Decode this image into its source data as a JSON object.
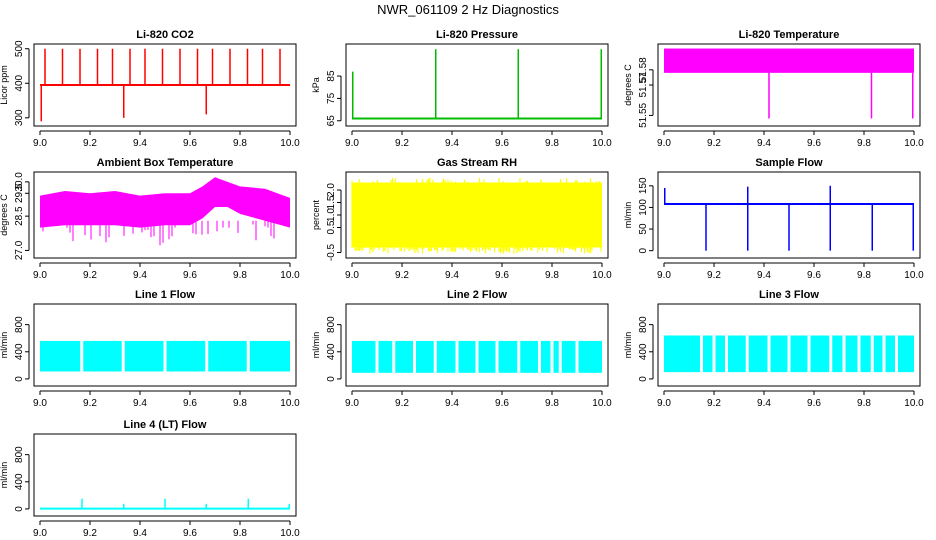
{
  "page_title": "NWR_061109  2 Hz Diagnostics",
  "chart_data": [
    {
      "type": "line",
      "title": "Li-820 CO2",
      "ylabel": "Licor ppm",
      "color": "#ff0000",
      "xlim": [
        9.0,
        10.0
      ],
      "ylim": [
        285,
        505
      ],
      "xticks": [
        9.0,
        9.2,
        9.4,
        9.6,
        9.8,
        10.0
      ],
      "xtick_labels": [
        "9.0",
        "9.2",
        "9.4",
        "9.6",
        "9.8",
        "10.0"
      ],
      "yticks": [
        300,
        400,
        500
      ],
      "ytick_labels": [
        "300",
        "400",
        "500"
      ],
      "baseline": [
        9.0,
        10.0,
        395,
        395
      ],
      "spikes": [
        [
          9.02,
          500
        ],
        [
          9.09,
          500
        ],
        [
          9.16,
          500
        ],
        [
          9.23,
          500
        ],
        [
          9.29,
          500
        ],
        [
          9.36,
          500
        ],
        [
          9.42,
          500
        ],
        [
          9.49,
          500
        ],
        [
          9.56,
          500
        ],
        [
          9.63,
          500
        ],
        [
          9.69,
          500
        ],
        [
          9.76,
          500
        ],
        [
          9.83,
          500
        ],
        [
          9.89,
          500
        ],
        [
          9.96,
          500
        ],
        [
          9.005,
          290
        ],
        [
          9.335,
          300
        ],
        [
          9.665,
          310
        ]
      ],
      "band": null
    },
    {
      "type": "line",
      "title": "Li-820 Pressure",
      "ylabel": "kPa",
      "color": "#00bb00",
      "xlim": [
        9.0,
        10.0
      ],
      "ylim": [
        64,
        98
      ],
      "xticks": [
        9.0,
        9.2,
        9.4,
        9.6,
        9.8,
        10.0
      ],
      "xtick_labels": [
        "9.0",
        "9.2",
        "9.4",
        "9.6",
        "9.8",
        "10.0"
      ],
      "yticks": [
        65,
        75,
        85
      ],
      "ytick_labels": [
        "65",
        "75",
        "85"
      ],
      "baseline": [
        9.0,
        10.0,
        66,
        66
      ],
      "spikes": [
        [
          9.003,
          87
        ],
        [
          9.335,
          97
        ],
        [
          9.665,
          97
        ],
        [
          9.997,
          97
        ]
      ],
      "band": null
    },
    {
      "type": "area",
      "title": "Li-820 Temperature",
      "ylabel": "degrees C",
      "color": "#ff00ff",
      "xlim": [
        9.0,
        10.0
      ],
      "ylim": [
        51.545,
        51.595
      ],
      "xticks": [
        9.0,
        9.2,
        9.4,
        9.6,
        9.8,
        10.0
      ],
      "xtick_labels": [
        "9.0",
        "9.2",
        "9.4",
        "9.6",
        "9.8",
        "10.0"
      ],
      "yticks": [
        51.55,
        51.57,
        51.58
      ],
      "ytick_labels": [
        "51.55",
        "51.57",
        "51.58"
      ],
      "baseline": null,
      "spikes": [
        [
          9.42,
          51.548
        ],
        [
          9.83,
          51.548
        ],
        [
          9.995,
          51.548
        ]
      ],
      "band": [
        51.578,
        51.594
      ]
    },
    {
      "type": "area",
      "title": "Ambient Box Temperature",
      "ylabel": "degrees C",
      "color": "#ff00ff",
      "xlim": [
        9.0,
        10.0
      ],
      "ylim": [
        26.8,
        30.3
      ],
      "xticks": [
        9.0,
        9.2,
        9.4,
        9.6,
        9.8,
        10.0
      ],
      "xtick_labels": [
        "9.0",
        "9.2",
        "9.4",
        "9.6",
        "9.8",
        "10.0"
      ],
      "yticks": [
        27.0,
        28.5,
        29.5,
        30.0
      ],
      "ytick_labels": [
        "27.0",
        "28.5",
        "29.5",
        "30.0"
      ],
      "baseline": null,
      "spikes": [],
      "band_series": {
        "x": [
          9.0,
          9.1,
          9.2,
          9.3,
          9.4,
          9.5,
          9.6,
          9.65,
          9.7,
          9.75,
          9.8,
          9.9,
          10.0
        ],
        "low": [
          28.0,
          28.1,
          28.1,
          28.1,
          28.0,
          28.1,
          28.1,
          28.4,
          28.9,
          28.9,
          28.6,
          28.3,
          28.0
        ],
        "high": [
          29.4,
          29.6,
          29.5,
          29.6,
          29.4,
          29.5,
          29.5,
          29.8,
          30.2,
          30.0,
          29.8,
          29.7,
          29.3
        ]
      },
      "band": null
    },
    {
      "type": "area",
      "title": "Gas Stream RH",
      "ylabel": "percent",
      "color": "#ffff00",
      "xlim": [
        9.0,
        10.0
      ],
      "ylim": [
        -0.6,
        2.6
      ],
      "xticks": [
        9.0,
        9.2,
        9.4,
        9.6,
        9.8,
        10.0
      ],
      "xtick_labels": [
        "9.0",
        "9.2",
        "9.4",
        "9.6",
        "9.8",
        "10.0"
      ],
      "yticks": [
        -0.5,
        0.5,
        1.0,
        1.5,
        2.0
      ],
      "ytick_labels": [
        "-0.5",
        "0.5",
        "1.0",
        "1.5",
        "2.0"
      ],
      "baseline": null,
      "spikes": [],
      "band": [
        -0.3,
        2.3
      ]
    },
    {
      "type": "line",
      "title": "Sample Flow",
      "ylabel": "ml/min",
      "color": "#0000ff",
      "xlim": [
        9.0,
        10.0
      ],
      "ylim": [
        -10,
        175
      ],
      "xticks": [
        9.0,
        9.2,
        9.4,
        9.6,
        9.8,
        10.0
      ],
      "xtick_labels": [
        "9.0",
        "9.2",
        "9.4",
        "9.6",
        "9.8",
        "10.0"
      ],
      "yticks": [
        0,
        50,
        100,
        150
      ],
      "ytick_labels": [
        "0",
        "50",
        "100",
        "150"
      ],
      "baseline": [
        9.0,
        10.0,
        108,
        108
      ],
      "spikes": [
        [
          9.003,
          145
        ],
        [
          9.168,
          0
        ],
        [
          9.335,
          148
        ],
        [
          9.335,
          0
        ],
        [
          9.5,
          0
        ],
        [
          9.665,
          150
        ],
        [
          9.665,
          0
        ],
        [
          9.833,
          0
        ],
        [
          9.997,
          0
        ]
      ],
      "band": null
    },
    {
      "type": "area",
      "title": "Line 1 Flow",
      "ylabel": "ml/min",
      "color": "#00ffff",
      "xlim": [
        9.0,
        10.0
      ],
      "ylim": [
        -60,
        1060
      ],
      "xticks": [
        9.0,
        9.2,
        9.4,
        9.6,
        9.8,
        10.0
      ],
      "xtick_labels": [
        "9.0",
        "9.2",
        "9.4",
        "9.6",
        "9.8",
        "10.0"
      ],
      "yticks": [
        0,
        400,
        800
      ],
      "ytick_labels": [
        "0",
        "400",
        "800"
      ],
      "baseline": null,
      "spikes": [],
      "band": [
        110,
        560
      ],
      "gaps": [
        9.167,
        9.333,
        9.5,
        9.667,
        9.833
      ]
    },
    {
      "type": "area",
      "title": "Line 2 Flow",
      "ylabel": "ml/min",
      "color": "#00ffff",
      "xlim": [
        9.0,
        10.0
      ],
      "ylim": [
        -60,
        1060
      ],
      "xticks": [
        9.0,
        9.2,
        9.4,
        9.6,
        9.8,
        10.0
      ],
      "xtick_labels": [
        "9.0",
        "9.2",
        "9.4",
        "9.6",
        "9.8",
        "10.0"
      ],
      "yticks": [
        0,
        400,
        800
      ],
      "ytick_labels": [
        "0",
        "400",
        "800"
      ],
      "baseline": null,
      "spikes": [],
      "band": [
        90,
        560
      ],
      "gaps": [
        9.1,
        9.167,
        9.25,
        9.333,
        9.42,
        9.5,
        9.58,
        9.667,
        9.75,
        9.8,
        9.833,
        9.9
      ]
    },
    {
      "type": "area",
      "title": "Line 3 Flow",
      "ylabel": "ml/min",
      "color": "#00ffff",
      "xlim": [
        9.0,
        10.0
      ],
      "ylim": [
        -60,
        1060
      ],
      "xticks": [
        9.0,
        9.2,
        9.4,
        9.6,
        9.8,
        10.0
      ],
      "xtick_labels": [
        "9.0",
        "9.2",
        "9.4",
        "9.6",
        "9.8",
        "10.0"
      ],
      "yticks": [
        0,
        400,
        800
      ],
      "ytick_labels": [
        "0",
        "400",
        "800"
      ],
      "baseline": null,
      "spikes": [],
      "band": [
        100,
        640
      ],
      "gaps": [
        9.15,
        9.2,
        9.25,
        9.333,
        9.42,
        9.5,
        9.58,
        9.667,
        9.72,
        9.78,
        9.833,
        9.88,
        9.93
      ]
    },
    {
      "type": "line",
      "title": "Line 4 (LT) Flow",
      "ylabel": "ml/min",
      "color": "#00ffff",
      "xlim": [
        9.0,
        10.0
      ],
      "ylim": [
        -60,
        1060
      ],
      "xticks": [
        9.0,
        9.2,
        9.4,
        9.6,
        9.8,
        10.0
      ],
      "xtick_labels": [
        "9.0",
        "9.2",
        "9.4",
        "9.6",
        "9.8",
        "10.0"
      ],
      "yticks": [
        0,
        400,
        800
      ],
      "ytick_labels": [
        "0",
        "400",
        "800"
      ],
      "baseline": [
        9.0,
        10.0,
        5,
        5
      ],
      "spikes": [
        [
          9.168,
          150
        ],
        [
          9.335,
          75
        ],
        [
          9.5,
          150
        ],
        [
          9.665,
          75
        ],
        [
          9.833,
          150
        ],
        [
          9.997,
          75
        ]
      ],
      "band": null
    }
  ]
}
